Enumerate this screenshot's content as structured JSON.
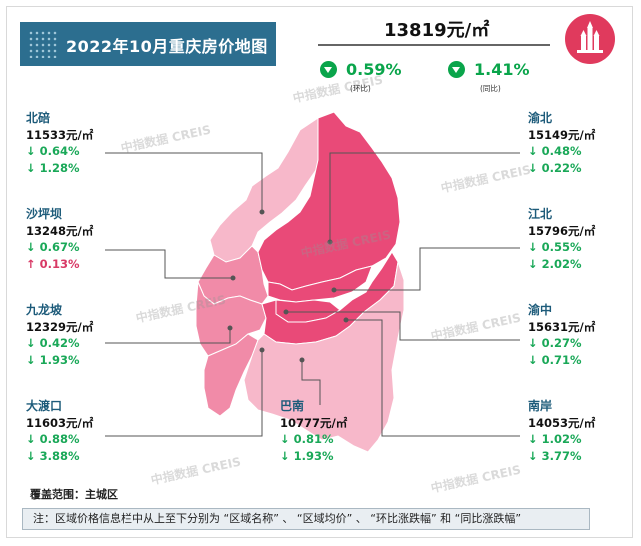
{
  "title": "2022年10月重庆房价地图",
  "summary": {
    "price": "13819元/㎡",
    "mom_value": "0.59%",
    "mom_note": "(环比)",
    "yoy_value": "1.41%",
    "yoy_note": "(同比)",
    "direction": "down",
    "color_down": "#0aa54b"
  },
  "districts": [
    {
      "name": "北碚",
      "price": "11533元/㎡",
      "mom": "↓ 0.64%",
      "yoy": "↓ 1.28%",
      "mom_dir": "down",
      "yoy_dir": "down"
    },
    {
      "name": "沙坪坝",
      "price": "13248元/㎡",
      "mom": "↓ 0.67%",
      "yoy": "↑ 0.13%",
      "mom_dir": "down",
      "yoy_dir": "up"
    },
    {
      "name": "九龙坡",
      "price": "12329元/㎡",
      "mom": "↓ 0.42%",
      "yoy": "↓ 1.93%",
      "mom_dir": "down",
      "yoy_dir": "down"
    },
    {
      "name": "大渡口",
      "price": "11603元/㎡",
      "mom": "↓ 0.88%",
      "yoy": "↓ 3.88%",
      "mom_dir": "down",
      "yoy_dir": "down"
    },
    {
      "name": "巴南",
      "price": "10777元/㎡",
      "mom": "↓ 0.81%",
      "yoy": "↓ 1.93%",
      "mom_dir": "down",
      "yoy_dir": "down"
    },
    {
      "name": "渝北",
      "price": "15149元/㎡",
      "mom": "↓ 0.48%",
      "yoy": "↓ 0.22%",
      "mom_dir": "down",
      "yoy_dir": "down"
    },
    {
      "name": "江北",
      "price": "15796元/㎡",
      "mom": "↓ 0.55%",
      "yoy": "↓ 2.02%",
      "mom_dir": "down",
      "yoy_dir": "down"
    },
    {
      "name": "渝中",
      "price": "15631元/㎡",
      "mom": "↓ 0.27%",
      "yoy": "↓ 0.71%",
      "mom_dir": "down",
      "yoy_dir": "down"
    },
    {
      "name": "南岸",
      "price": "14053元/㎡",
      "mom": "↓ 1.02%",
      "yoy": "↓ 3.77%",
      "mom_dir": "down",
      "yoy_dir": "down"
    }
  ],
  "colors": {
    "high": "#e94a78",
    "mid": "#f18ba8",
    "low": "#f7b8ca",
    "title_bg": "#2c6e8f",
    "up": "#d83a66",
    "down": "#1aa858"
  },
  "coverage": "覆盖范围：主城区",
  "note": "注：区域价格信息栏中从上至下分别为 “区域名称” 、 “区域均价” 、 “环比涨跌幅” 和 “同比涨跌幅”",
  "watermark": "中指数据 CREIS"
}
